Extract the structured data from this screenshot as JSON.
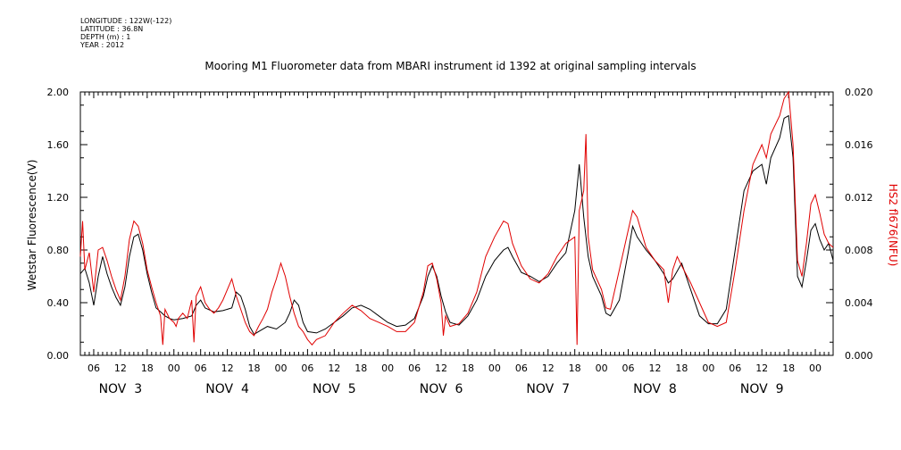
{
  "header": {
    "longitude": "LONGITUDE : 122W(-122)",
    "latitude": "LATITUDE : 36.8N",
    "depth": "DEPTH (m) : 1",
    "year": "YEAR : 2012"
  },
  "chart_data": {
    "type": "line",
    "title": "Mooring M1 Fluorometer data from MBARI instrument id 1392 at original sampling intervals",
    "ylabel_left": "Wetstar Fluorescence(V)",
    "ylabel_right": "HS2 fl676(NFU)",
    "ylim_left": [
      0,
      2.0
    ],
    "ylim_right": [
      0,
      0.02
    ],
    "yticks_left": [
      "0.00",
      "0.40",
      "0.80",
      "1.20",
      "1.60",
      "2.00"
    ],
    "yticks_right": [
      "0.000",
      "0.004",
      "0.008",
      "0.012",
      "0.016",
      "0.020"
    ],
    "x_units": "hours since Nov 3 00:00, 2012",
    "xlim": [
      3,
      172
    ],
    "hour_ticks": [
      "06",
      "12",
      "18",
      "00",
      "06",
      "12",
      "18",
      "00",
      "06",
      "12",
      "18",
      "00",
      "06",
      "12",
      "18",
      "00",
      "06",
      "12",
      "18",
      "00",
      "06",
      "12",
      "18",
      "00",
      "06",
      "12",
      "18",
      "00"
    ],
    "day_labels": [
      "NOV  3",
      "NOV  4",
      "NOV  5",
      "NOV  6",
      "NOV  7",
      "NOV  8",
      "NOV  9"
    ],
    "colors": {
      "series1": "#000000",
      "series2": "#e00000"
    },
    "series": [
      {
        "axis": "left",
        "points": [
          [
            3,
            0.62
          ],
          [
            4,
            0.66
          ],
          [
            5,
            0.55
          ],
          [
            6,
            0.38
          ],
          [
            7,
            0.6
          ],
          [
            8,
            0.75
          ],
          [
            9,
            0.62
          ],
          [
            10,
            0.52
          ],
          [
            11,
            0.44
          ],
          [
            12,
            0.38
          ],
          [
            13,
            0.52
          ],
          [
            14,
            0.75
          ],
          [
            15,
            0.9
          ],
          [
            16,
            0.92
          ],
          [
            17,
            0.8
          ],
          [
            18,
            0.62
          ],
          [
            19,
            0.48
          ],
          [
            20,
            0.36
          ],
          [
            21,
            0.33
          ],
          [
            22,
            0.3
          ],
          [
            23,
            0.28
          ],
          [
            24,
            0.27
          ],
          [
            26,
            0.28
          ],
          [
            28,
            0.3
          ],
          [
            29,
            0.38
          ],
          [
            30,
            0.42
          ],
          [
            31,
            0.36
          ],
          [
            33,
            0.33
          ],
          [
            35,
            0.34
          ],
          [
            37,
            0.36
          ],
          [
            38,
            0.48
          ],
          [
            39,
            0.45
          ],
          [
            40,
            0.35
          ],
          [
            41,
            0.22
          ],
          [
            42,
            0.16
          ],
          [
            43,
            0.18
          ],
          [
            45,
            0.22
          ],
          [
            47,
            0.2
          ],
          [
            49,
            0.25
          ],
          [
            50,
            0.32
          ],
          [
            51,
            0.42
          ],
          [
            52,
            0.38
          ],
          [
            53,
            0.25
          ],
          [
            54,
            0.18
          ],
          [
            56,
            0.17
          ],
          [
            58,
            0.2
          ],
          [
            60,
            0.25
          ],
          [
            62,
            0.3
          ],
          [
            64,
            0.36
          ],
          [
            66,
            0.38
          ],
          [
            68,
            0.35
          ],
          [
            70,
            0.3
          ],
          [
            72,
            0.25
          ],
          [
            74,
            0.22
          ],
          [
            76,
            0.23
          ],
          [
            78,
            0.28
          ],
          [
            80,
            0.45
          ],
          [
            81,
            0.6
          ],
          [
            82,
            0.68
          ],
          [
            83,
            0.6
          ],
          [
            84,
            0.45
          ],
          [
            85,
            0.33
          ],
          [
            86,
            0.25
          ],
          [
            88,
            0.23
          ],
          [
            90,
            0.3
          ],
          [
            92,
            0.42
          ],
          [
            94,
            0.6
          ],
          [
            96,
            0.72
          ],
          [
            98,
            0.8
          ],
          [
            99,
            0.82
          ],
          [
            100,
            0.75
          ],
          [
            102,
            0.63
          ],
          [
            104,
            0.6
          ],
          [
            106,
            0.56
          ],
          [
            108,
            0.6
          ],
          [
            110,
            0.7
          ],
          [
            112,
            0.78
          ],
          [
            114,
            1.1
          ],
          [
            115,
            1.45
          ],
          [
            116,
            1.05
          ],
          [
            117,
            0.75
          ],
          [
            118,
            0.6
          ],
          [
            120,
            0.45
          ],
          [
            121,
            0.32
          ],
          [
            122,
            0.3
          ],
          [
            124,
            0.42
          ],
          [
            126,
            0.78
          ],
          [
            127,
            0.98
          ],
          [
            128,
            0.9
          ],
          [
            130,
            0.8
          ],
          [
            132,
            0.72
          ],
          [
            134,
            0.62
          ],
          [
            135,
            0.55
          ],
          [
            136,
            0.58
          ],
          [
            138,
            0.7
          ],
          [
            140,
            0.5
          ],
          [
            142,
            0.3
          ],
          [
            144,
            0.24
          ],
          [
            146,
            0.24
          ],
          [
            148,
            0.35
          ],
          [
            150,
            0.8
          ],
          [
            152,
            1.25
          ],
          [
            154,
            1.4
          ],
          [
            156,
            1.45
          ],
          [
            157,
            1.3
          ],
          [
            158,
            1.5
          ],
          [
            160,
            1.65
          ],
          [
            161,
            1.8
          ],
          [
            162,
            1.82
          ],
          [
            163,
            1.5
          ],
          [
            164,
            0.6
          ],
          [
            165,
            0.52
          ],
          [
            166,
            0.72
          ],
          [
            167,
            0.95
          ],
          [
            168,
            1.0
          ],
          [
            169,
            0.88
          ],
          [
            170,
            0.8
          ],
          [
            171,
            0.85
          ],
          [
            172,
            0.72
          ]
        ]
      },
      {
        "axis": "right",
        "points": [
          [
            3,
            0.0075
          ],
          [
            3.5,
            0.0102
          ],
          [
            4,
            0.0065
          ],
          [
            5,
            0.0078
          ],
          [
            6,
            0.0048
          ],
          [
            7,
            0.008
          ],
          [
            8,
            0.0082
          ],
          [
            9,
            0.0072
          ],
          [
            10,
            0.006
          ],
          [
            11,
            0.005
          ],
          [
            12,
            0.0042
          ],
          [
            13,
            0.006
          ],
          [
            14,
            0.0088
          ],
          [
            15,
            0.0102
          ],
          [
            16,
            0.0098
          ],
          [
            17,
            0.0085
          ],
          [
            18,
            0.0065
          ],
          [
            19,
            0.0052
          ],
          [
            20,
            0.004
          ],
          [
            21,
            0.003
          ],
          [
            21.5,
            0.0008
          ],
          [
            22,
            0.0035
          ],
          [
            23,
            0.0028
          ],
          [
            24,
            0.0025
          ],
          [
            24.5,
            0.0022
          ],
          [
            25,
            0.0028
          ],
          [
            26,
            0.0032
          ],
          [
            27,
            0.0028
          ],
          [
            28,
            0.0042
          ],
          [
            28.5,
            0.001
          ],
          [
            29,
            0.0045
          ],
          [
            30,
            0.0052
          ],
          [
            31,
            0.004
          ],
          [
            32,
            0.0035
          ],
          [
            33,
            0.0032
          ],
          [
            34,
            0.0036
          ],
          [
            35,
            0.0042
          ],
          [
            36,
            0.005
          ],
          [
            37,
            0.0058
          ],
          [
            38,
            0.0045
          ],
          [
            39,
            0.0035
          ],
          [
            40,
            0.0025
          ],
          [
            41,
            0.0018
          ],
          [
            42,
            0.0015
          ],
          [
            43,
            0.0022
          ],
          [
            44,
            0.0028
          ],
          [
            45,
            0.0035
          ],
          [
            46,
            0.0048
          ],
          [
            47,
            0.0058
          ],
          [
            48,
            0.007
          ],
          [
            49,
            0.006
          ],
          [
            50,
            0.0045
          ],
          [
            51,
            0.0032
          ],
          [
            52,
            0.0022
          ],
          [
            53,
            0.0018
          ],
          [
            54,
            0.0012
          ],
          [
            55,
            0.0008
          ],
          [
            56,
            0.0012
          ],
          [
            58,
            0.0015
          ],
          [
            60,
            0.0025
          ],
          [
            62,
            0.0032
          ],
          [
            64,
            0.0038
          ],
          [
            66,
            0.0034
          ],
          [
            68,
            0.0028
          ],
          [
            70,
            0.0025
          ],
          [
            72,
            0.0022
          ],
          [
            74,
            0.0018
          ],
          [
            76,
            0.0018
          ],
          [
            78,
            0.0025
          ],
          [
            80,
            0.0048
          ],
          [
            81,
            0.0068
          ],
          [
            82,
            0.007
          ],
          [
            83,
            0.0058
          ],
          [
            84,
            0.004
          ],
          [
            84.5,
            0.0015
          ],
          [
            85,
            0.003
          ],
          [
            86,
            0.0022
          ],
          [
            88,
            0.0024
          ],
          [
            90,
            0.0032
          ],
          [
            92,
            0.0048
          ],
          [
            94,
            0.0075
          ],
          [
            96,
            0.009
          ],
          [
            98,
            0.0102
          ],
          [
            99,
            0.01
          ],
          [
            100,
            0.0085
          ],
          [
            102,
            0.0068
          ],
          [
            104,
            0.0058
          ],
          [
            106,
            0.0055
          ],
          [
            108,
            0.0062
          ],
          [
            110,
            0.0075
          ],
          [
            112,
            0.0085
          ],
          [
            114,
            0.009
          ],
          [
            114.5,
            0.0008
          ],
          [
            115,
            0.011
          ],
          [
            116,
            0.0125
          ],
          [
            116.5,
            0.0168
          ],
          [
            117,
            0.009
          ],
          [
            118,
            0.0065
          ],
          [
            120,
            0.005
          ],
          [
            121,
            0.0036
          ],
          [
            122,
            0.0035
          ],
          [
            124,
            0.0065
          ],
          [
            126,
            0.0095
          ],
          [
            127,
            0.011
          ],
          [
            128,
            0.0105
          ],
          [
            130,
            0.0082
          ],
          [
            132,
            0.0072
          ],
          [
            134,
            0.0065
          ],
          [
            135,
            0.004
          ],
          [
            136,
            0.0065
          ],
          [
            137,
            0.0075
          ],
          [
            138,
            0.0068
          ],
          [
            140,
            0.0055
          ],
          [
            142,
            0.004
          ],
          [
            144,
            0.0025
          ],
          [
            146,
            0.0022
          ],
          [
            148,
            0.0025
          ],
          [
            150,
            0.0065
          ],
          [
            152,
            0.011
          ],
          [
            154,
            0.0145
          ],
          [
            156,
            0.016
          ],
          [
            157,
            0.015
          ],
          [
            158,
            0.0168
          ],
          [
            160,
            0.0182
          ],
          [
            161,
            0.0195
          ],
          [
            162,
            0.0203
          ],
          [
            163,
            0.016
          ],
          [
            164,
            0.0072
          ],
          [
            165,
            0.006
          ],
          [
            166,
            0.0085
          ],
          [
            167,
            0.0115
          ],
          [
            168,
            0.0122
          ],
          [
            169,
            0.0108
          ],
          [
            170,
            0.0092
          ],
          [
            171,
            0.0085
          ],
          [
            172,
            0.0082
          ]
        ]
      }
    ]
  }
}
